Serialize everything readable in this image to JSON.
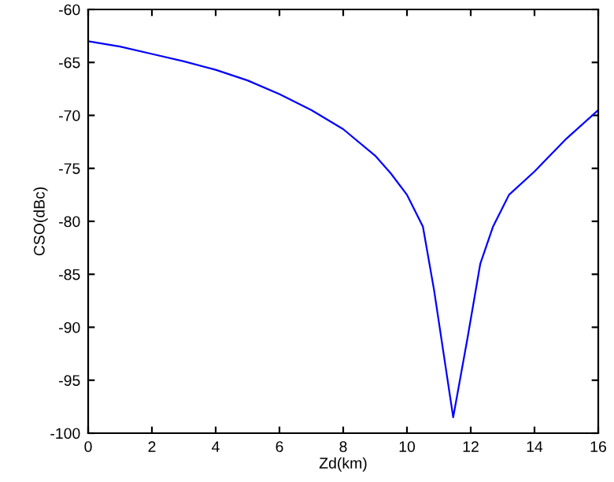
{
  "chart_data": {
    "type": "line",
    "xlabel": "Zd(km)",
    "ylabel": "CSO(dBc)",
    "x": [
      0,
      1,
      2,
      3,
      4,
      5,
      6,
      7,
      8,
      9,
      9.5,
      10,
      10.5,
      10.85,
      11.45,
      11.9,
      12.3,
      12.7,
      13.2,
      14,
      15,
      16
    ],
    "series": [
      {
        "color": "#0000ff",
        "values": [
          -63,
          -63.5,
          -64.2,
          -64.9,
          -65.7,
          -66.7,
          -68,
          -69.5,
          -71.3,
          -73.8,
          -75.5,
          -77.5,
          -80.5,
          -86.5,
          -98.5,
          -91,
          -84,
          -80.5,
          -77.5,
          -75.3,
          -72.2,
          -69.5
        ]
      }
    ],
    "xlim": [
      0,
      16
    ],
    "xticks": [
      0,
      2,
      4,
      6,
      8,
      10,
      12,
      14,
      16
    ],
    "ylim": [
      -100,
      -60
    ],
    "yticks": [
      -100,
      -95,
      -90,
      -85,
      -80,
      -75,
      -70,
      -65,
      -60
    ],
    "grid": false,
    "legend": false,
    "marker": "none",
    "line_style": "solid"
  }
}
